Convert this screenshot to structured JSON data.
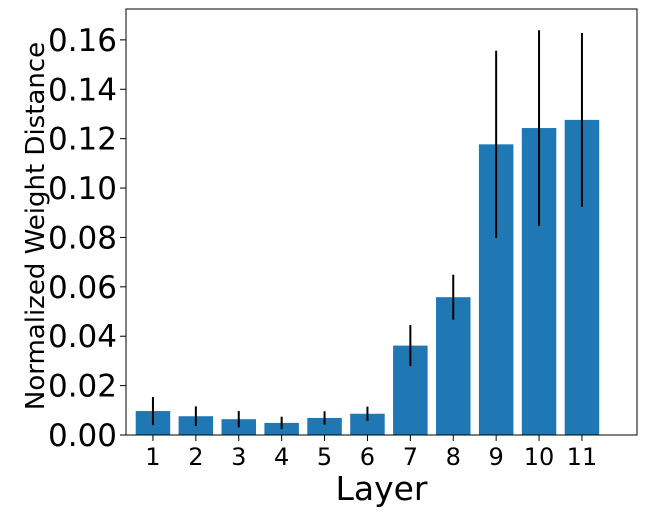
{
  "chart_data": {
    "type": "bar",
    "categories": [
      "1",
      "2",
      "3",
      "4",
      "5",
      "6",
      "7",
      "8",
      "9",
      "10",
      "11"
    ],
    "values": [
      0.0097,
      0.0076,
      0.0064,
      0.0049,
      0.0069,
      0.0086,
      0.0362,
      0.0558,
      0.1177,
      0.1243,
      0.1276
    ],
    "errors": [
      0.0057,
      0.004,
      0.0033,
      0.0025,
      0.0027,
      0.0029,
      0.0083,
      0.0091,
      0.0379,
      0.0396,
      0.0352
    ],
    "xlabel": "Layer",
    "ylabel": "Normalized Weight Distance",
    "ylim": [
      0,
      0.1725
    ],
    "yticks": [
      "0.00",
      "0.02",
      "0.04",
      "0.06",
      "0.08",
      "0.10",
      "0.12",
      "0.14",
      "0.16"
    ],
    "ytick_values": [
      0,
      0.02,
      0.04,
      0.06,
      0.08,
      0.1,
      0.12,
      0.14,
      0.16
    ],
    "bar_color": "#1f77b4",
    "error_bar_color": "#000000",
    "grid": false
  }
}
